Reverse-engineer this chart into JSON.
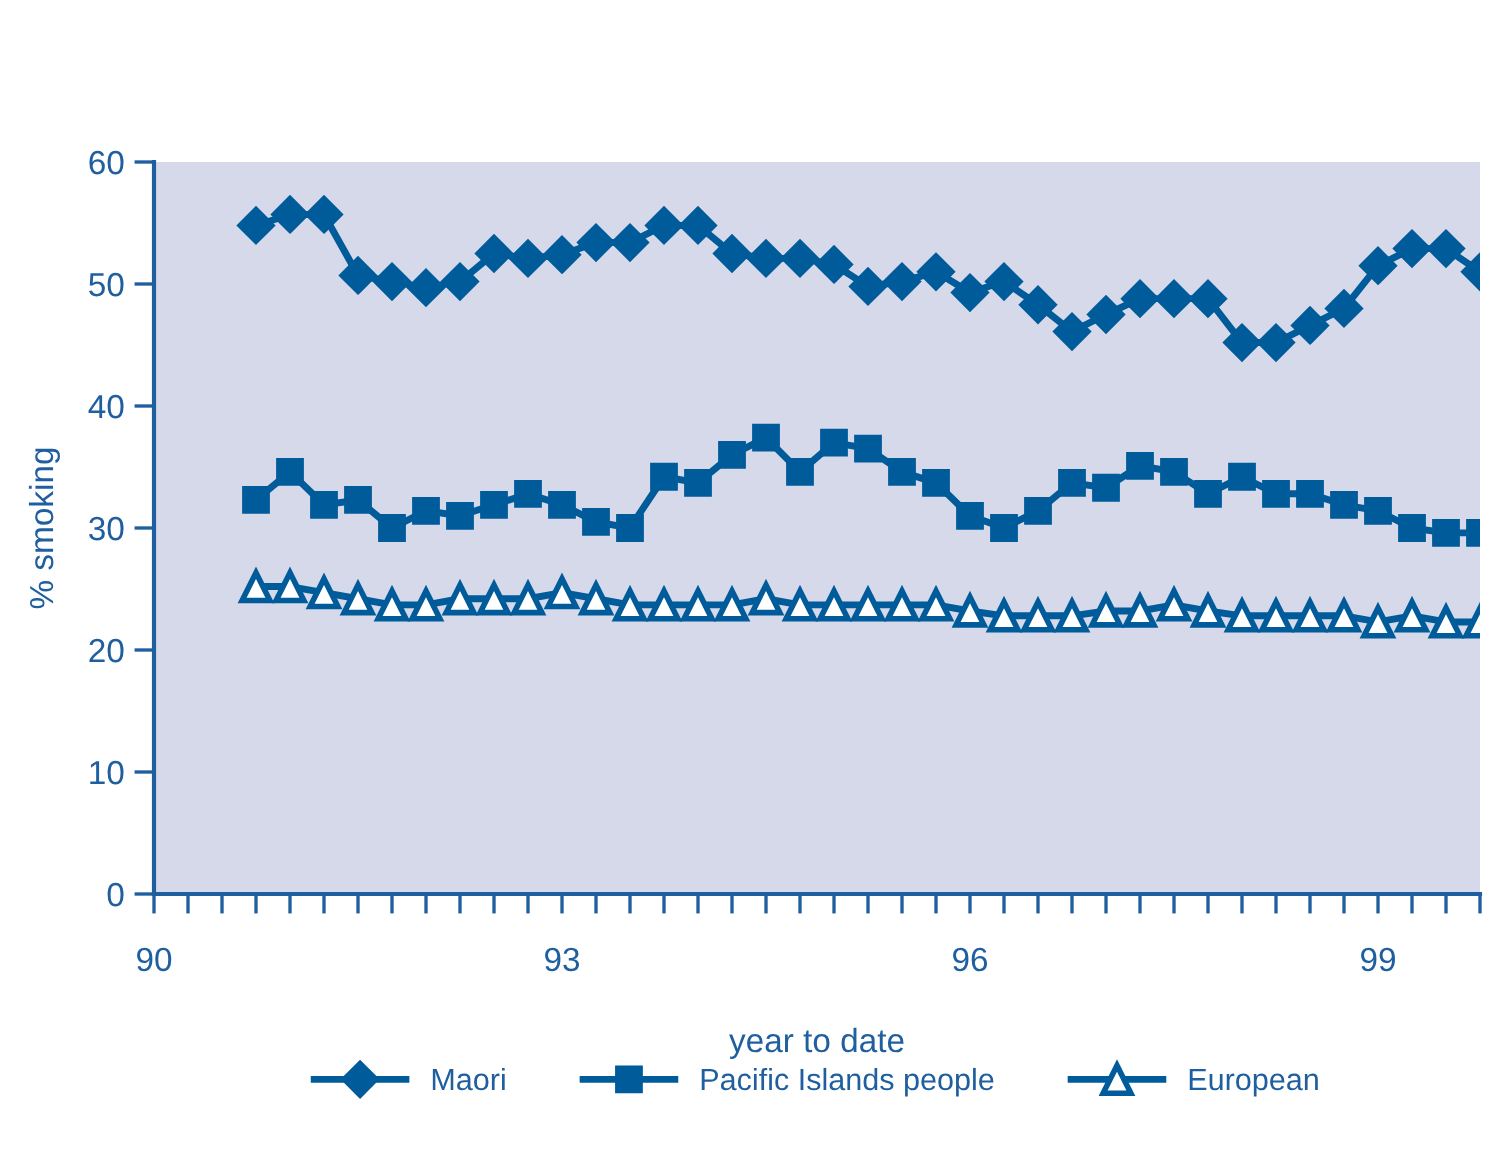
{
  "chart_data": {
    "type": "line",
    "xlabel": "year to date",
    "ylabel": "% smoking",
    "x": [
      90.75,
      91.0,
      91.25,
      91.5,
      91.75,
      92.0,
      92.25,
      92.5,
      92.75,
      93.0,
      93.25,
      93.5,
      93.75,
      94.0,
      94.25,
      94.5,
      94.75,
      95.0,
      95.25,
      95.5,
      95.75,
      96.0,
      96.25,
      96.5,
      96.75,
      97.0,
      97.25,
      97.5,
      97.75,
      98.0,
      98.25,
      98.5,
      98.75,
      99.0,
      99.25,
      99.5,
      99.75
    ],
    "series": [
      {
        "name": "Maori",
        "color": "#005b9a",
        "marker": "diamond",
        "values": [
          54.8,
          55.7,
          55.7,
          50.7,
          50.2,
          49.7,
          50.2,
          52.5,
          52.1,
          52.4,
          53.4,
          53.4,
          54.8,
          54.8,
          52.5,
          52.1,
          52.1,
          51.6,
          49.8,
          50.2,
          51.0,
          49.3,
          50.2,
          48.3,
          46.1,
          47.5,
          48.8,
          48.8,
          48.8,
          45.2,
          45.2,
          46.6,
          48.0,
          51.5,
          52.9,
          52.9,
          51.0
        ]
      },
      {
        "name": "Pacific Islands people",
        "color": "#005b9a",
        "marker": "square",
        "values": [
          32.3,
          34.6,
          31.9,
          32.3,
          30.0,
          31.4,
          31.0,
          31.9,
          32.8,
          31.9,
          30.5,
          30.0,
          34.2,
          33.7,
          36.0,
          37.4,
          34.6,
          37.0,
          36.5,
          34.6,
          33.7,
          31.0,
          30.0,
          31.4,
          33.7,
          33.3,
          35.1,
          34.6,
          32.8,
          34.2,
          32.8,
          32.8,
          31.9,
          31.4,
          30.0,
          29.6,
          29.6
        ]
      },
      {
        "name": "European",
        "color": "#005b9a",
        "marker": "triangle",
        "values": [
          25.2,
          25.2,
          24.7,
          24.2,
          23.7,
          23.7,
          24.2,
          24.2,
          24.2,
          24.7,
          24.2,
          23.7,
          23.7,
          23.7,
          23.7,
          24.2,
          23.7,
          23.7,
          23.7,
          23.7,
          23.7,
          23.2,
          22.8,
          22.8,
          22.8,
          23.2,
          23.2,
          23.7,
          23.2,
          22.8,
          22.8,
          22.8,
          22.8,
          22.3,
          22.8,
          22.3,
          22.3
        ]
      }
    ],
    "xlim": [
      90,
      99.75
    ],
    "xticks": [
      90,
      {
        "value": 90.25,
        "label": null
      },
      {
        "value": 90.5,
        "label": null
      },
      {
        "value": 90.75,
        "label": null
      },
      {
        "value": 91,
        "label": null
      },
      {
        "value": 91.25,
        "label": null
      },
      {
        "value": 91.5,
        "label": null
      },
      {
        "value": 91.75,
        "label": null
      },
      {
        "value": 92,
        "label": null
      },
      {
        "value": 92.25,
        "label": null
      },
      {
        "value": 92.5,
        "label": null
      },
      {
        "value": 92.75,
        "label": null
      },
      93,
      {
        "value": 93.25,
        "label": null
      },
      {
        "value": 93.5,
        "label": null
      },
      {
        "value": 93.75,
        "label": null
      },
      {
        "value": 94,
        "label": null
      },
      {
        "value": 94.25,
        "label": null
      },
      {
        "value": 94.5,
        "label": null
      },
      {
        "value": 94.75,
        "label": null
      },
      {
        "value": 95,
        "label": null
      },
      {
        "value": 95.25,
        "label": null
      },
      {
        "value": 95.5,
        "label": null
      },
      {
        "value": 95.75,
        "label": null
      },
      96,
      {
        "value": 96.25,
        "label": null
      },
      {
        "value": 96.5,
        "label": null
      },
      {
        "value": 96.75,
        "label": null
      },
      {
        "value": 97,
        "label": null
      },
      {
        "value": 97.25,
        "label": null
      },
      {
        "value": 97.5,
        "label": null
      },
      {
        "value": 97.75,
        "label": null
      },
      {
        "value": 98,
        "label": null
      },
      {
        "value": 98.25,
        "label": null
      },
      {
        "value": 98.5,
        "label": null
      },
      {
        "value": 98.75,
        "label": null
      },
      99,
      {
        "value": 99.25,
        "label": null
      },
      {
        "value": 99.5,
        "label": null
      },
      {
        "value": 99.75,
        "label": null
      }
    ],
    "ylim": [
      0,
      60
    ],
    "yticks": [
      0,
      10,
      20,
      30,
      40,
      50,
      60
    ],
    "grid": false,
    "legend": "bottom",
    "line_style": "solid"
  }
}
